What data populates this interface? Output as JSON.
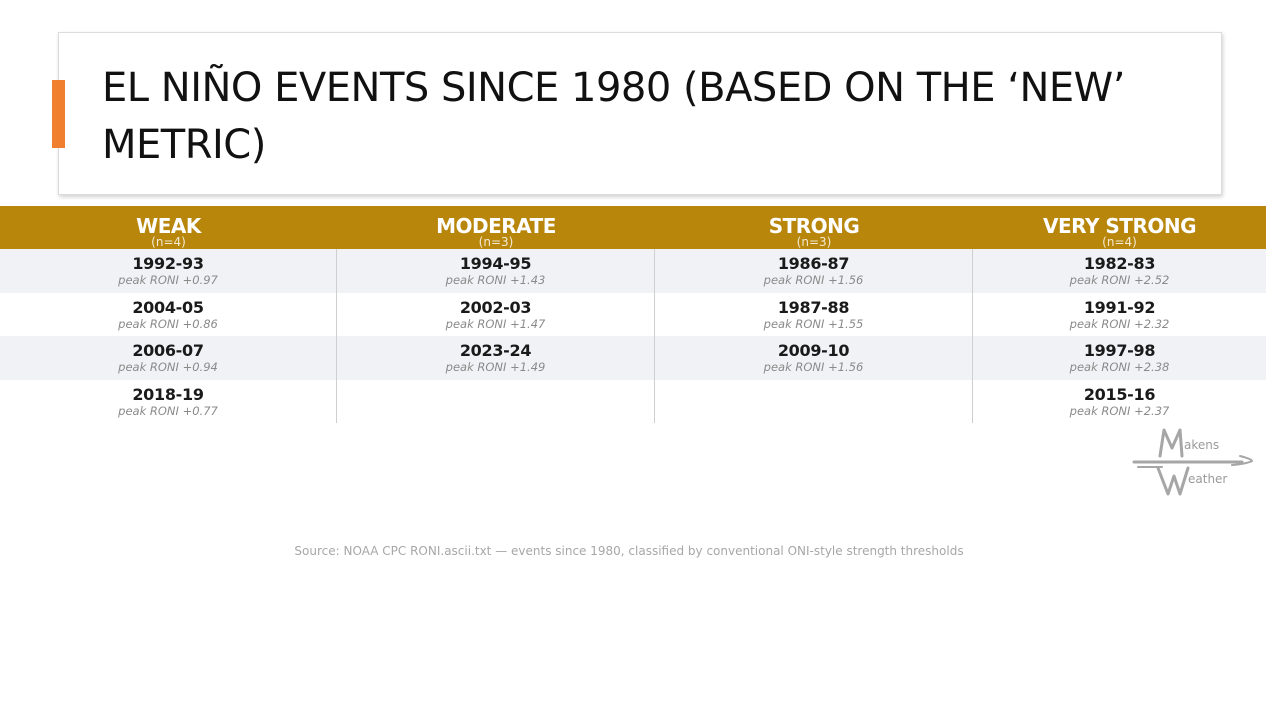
{
  "title": "EL NIÑO EVENTS SINCE 1980 (BASED ON THE ‘NEW’ METRIC)",
  "accent_color": "#f07f2f",
  "header_color": "#b8860b",
  "columns": [
    {
      "label": "WEAK",
      "count": "(n=4)"
    },
    {
      "label": "MODERATE",
      "count": "(n=3)"
    },
    {
      "label": "STRONG",
      "count": "(n=3)"
    },
    {
      "label": "VERY STRONG",
      "count": "(n=4)"
    }
  ],
  "rows": [
    [
      {
        "season": "1992-93",
        "peak": "peak RONI +0.97"
      },
      {
        "season": "1994-95",
        "peak": "peak RONI +1.43"
      },
      {
        "season": "1986-87",
        "peak": "peak RONI +1.56"
      },
      {
        "season": "1982-83",
        "peak": "peak RONI +2.52"
      }
    ],
    [
      {
        "season": "2004-05",
        "peak": "peak RONI +0.86"
      },
      {
        "season": "2002-03",
        "peak": "peak RONI +1.47"
      },
      {
        "season": "1987-88",
        "peak": "peak RONI +1.55"
      },
      {
        "season": "1991-92",
        "peak": "peak RONI +2.32"
      }
    ],
    [
      {
        "season": "2006-07",
        "peak": "peak RONI +0.94"
      },
      {
        "season": "2023-24",
        "peak": "peak RONI +1.49"
      },
      {
        "season": "2009-10",
        "peak": "peak RONI +1.56"
      },
      {
        "season": "1997-98",
        "peak": "peak RONI +2.38"
      }
    ],
    [
      {
        "season": "2018-19",
        "peak": "peak RONI +0.77"
      },
      {
        "season": "",
        "peak": ""
      },
      {
        "season": "",
        "peak": ""
      },
      {
        "season": "2015-16",
        "peak": "peak RONI +2.37"
      }
    ]
  ],
  "logo": {
    "line1": "akens",
    "line2": "eather"
  },
  "source": "Source: NOAA CPC RONI.ascii.txt — events since 1980, classified by conventional ONI-style strength thresholds"
}
